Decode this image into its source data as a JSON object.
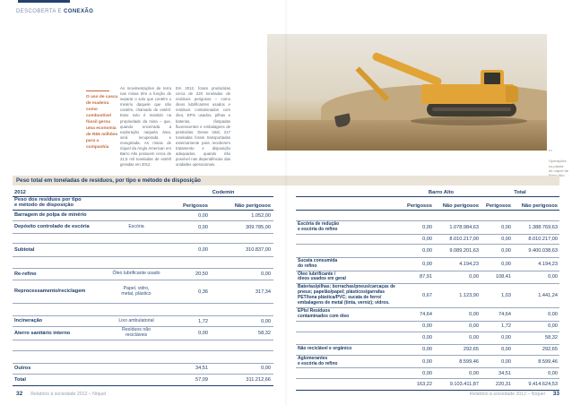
{
  "header": {
    "chapter_prefix": "DESCOBERTA E",
    "chapter_bold": "CONEXÃO"
  },
  "intro": {
    "callout": "O uso de casca de madeira como combustível fóssil gerou uma economia de R$6 milhões para a companhia",
    "col1": "As movimentações de terra nas minas têm a função de separar o solo que contém o minério daquele que não contém, chamado de estéril. Esse solo é mantido na propriedade da mina – que, quando encerrada a exploração naquela área, será recuperada e revegetada. As minas de níquel da Anglo American em Barro Alto possuem cerca de 21,5 mil toneladas de estéril geradas em 2012.",
    "col2": "Em 2012, foram produzidas cerca de 220 toneladas de resíduos perigosos – como óleos lubrificantes usados e resíduos contaminados com óleo, EPIs usados, pilhas e baterias, lâmpadas fluorescentes e embalagens de pesticidas. Desse total, 217 toneladas foram transportadas externamente para receberem tratamento e disposição adequados, quando não possível nas dependências das unidades operacionais."
  },
  "photo": {
    "caption_marks": "▪▪",
    "caption": "Operações na planta\nde níquel de Barro Alto"
  },
  "table": {
    "title": "Peso total em toneladas de resíduos, por tipo e método de disposição",
    "year": "2012",
    "row_header": "Peso dos resíduos por tipo\ne método de disposição",
    "groups": {
      "codemin": "Codemin",
      "barro_alto": "Barro Alto",
      "total": "Total"
    },
    "col_hazard": "Perigosos",
    "col_nonhazard": "Não perigosos",
    "rows": [
      {
        "id": "barragem",
        "h": 12,
        "left_label": "Barragem de polpa de minério",
        "material": "",
        "c_p": "0,00",
        "c_np": "1.052,00",
        "right_label": "",
        "ba_p": "",
        "ba_np": "",
        "t_p": "",
        "t_np": ""
      },
      {
        "id": "deposito-escoria",
        "h": 14,
        "left_label": "Depósito controlado de escória",
        "material": "Escória",
        "c_p": "0,00",
        "c_np": "309.785,00",
        "right_label": "Escória de redução\ne escória do refino",
        "ba_p": "0,00",
        "ba_np": "1.078.984,63",
        "t_p": "0,00",
        "t_np": "1.388.769,63"
      },
      {
        "id": "escoria-2",
        "h": 11,
        "left_label": "",
        "material": "",
        "c_p": "",
        "c_np": "",
        "right_label": "",
        "ba_p": "0,00",
        "ba_np": "8.010.217,00",
        "t_p": "0,00",
        "t_np": "8.010.217,00"
      },
      {
        "id": "subtotal",
        "h": 15,
        "kind": "subtotal",
        "left_label": "Subtotal",
        "material": "",
        "c_p": "0,00",
        "c_np": "310.837,00",
        "right_label": "",
        "ba_p": "0,00",
        "ba_np": "9.089.201,63",
        "t_p": "0,00",
        "t_np": "9.400.038,63"
      },
      {
        "id": "sucata",
        "h": 13,
        "left_label": "",
        "material": "",
        "c_p": "",
        "c_np": "",
        "right_label": "Sucata consumida\ndo refino",
        "ba_p": "0,00",
        "ba_np": "4.194,23",
        "t_p": "0,00",
        "t_np": "4.194,23"
      },
      {
        "id": "re-refino",
        "h": 13,
        "left_label": "Re-refino",
        "material": "Óleo lubrificante usado",
        "c_p": "20,50",
        "c_np": "0,00",
        "right_label": "Óleo lubrificante /\nóleos usados em geral",
        "ba_p": "87,91",
        "ba_np": "0,00",
        "t_p": "108,41",
        "t_np": "0,00"
      },
      {
        "id": "reprocessamento",
        "h": 26,
        "left_label": "Reprocessamento/reciclagem",
        "material": "Papel, vidro,\nmetal, plástico",
        "c_p": "0,36",
        "c_np": "317,34",
        "right_label": "Baterias/pilhas; borrachas/pneus/carcaças de pneus; papelão/papel; plásticos/garrafas PET/lona plástica/PVC; sucata de ferro/ embalagens de metal (tinta, verniz); vidros.",
        "ba_p": "0,67",
        "ba_np": "1.123,90",
        "t_p": "1,03",
        "t_np": "1.441,24"
      },
      {
        "id": "epis",
        "h": 14,
        "left_label": "",
        "material": "",
        "c_p": "",
        "c_np": "",
        "right_label": "EPIs/ Resíduos\ncontaminados com óleo",
        "ba_p": "74,64",
        "ba_np": "0,00",
        "t_p": "74,64",
        "t_np": "0,00"
      },
      {
        "id": "incineracao",
        "h": 12,
        "left_label": "Incineração",
        "material": "Lixo ambulatorial",
        "c_p": "1,72",
        "c_np": "0,00",
        "right_label": "",
        "ba_p": "0,00",
        "ba_np": "0,00",
        "t_p": "1,72",
        "t_np": "0,00"
      },
      {
        "id": "aterro-interno",
        "h": 14,
        "left_label": "Aterro sanitário interno",
        "material": "Resíduos não\nrecicláveis",
        "c_p": "0,00",
        "c_np": "58,32",
        "right_label": "",
        "ba_p": "0,00",
        "ba_np": "0,00",
        "t_p": "0,00",
        "t_np": "58,32"
      },
      {
        "id": "nao-reciclavel",
        "h": 12,
        "left_label": "",
        "material": "",
        "c_p": "",
        "c_np": "",
        "right_label": "Não reciclável e orgânico",
        "ba_p": "0,00",
        "ba_np": "292,65",
        "t_p": "0,00",
        "t_np": "292,65"
      },
      {
        "id": "aglomerantes",
        "h": 14,
        "left_label": "",
        "material": "",
        "c_p": "",
        "c_np": "",
        "right_label": "Aglomerantes\ne escória do refino",
        "ba_p": "0,00",
        "ba_np": "8.599,46",
        "t_p": "0,00",
        "t_np": "8.599,46"
      },
      {
        "id": "outros",
        "h": 12,
        "left_label": "Outros",
        "material": "",
        "c_p": "34,51",
        "c_np": "0,00",
        "right_label": "",
        "ba_p": "0,00",
        "ba_np": "0,00",
        "t_p": "34,51",
        "t_np": "0,00"
      },
      {
        "id": "total",
        "h": 13,
        "kind": "total",
        "left_label": "Total",
        "material": "",
        "c_p": "57,09",
        "c_np": "311.212,66",
        "right_label": "",
        "ba_p": "163,22",
        "ba_np": "9.103.411,87",
        "t_p": "220,31",
        "t_np": "9.414.624,53"
      }
    ]
  },
  "footer": {
    "left_page": "32",
    "left_text": "Relatório à sociedade 2012 – Níquel",
    "right_text": "Relatório à sociedade 2012 – Níquel",
    "right_page": "33"
  },
  "colors": {
    "navy": "#24426e",
    "table_text": "#1e3e69",
    "beige_bar": "#eae3d8",
    "accent_orange": "#c0693f",
    "body_text": "#5f6b76",
    "excavator_yellow": "#e2a436"
  }
}
